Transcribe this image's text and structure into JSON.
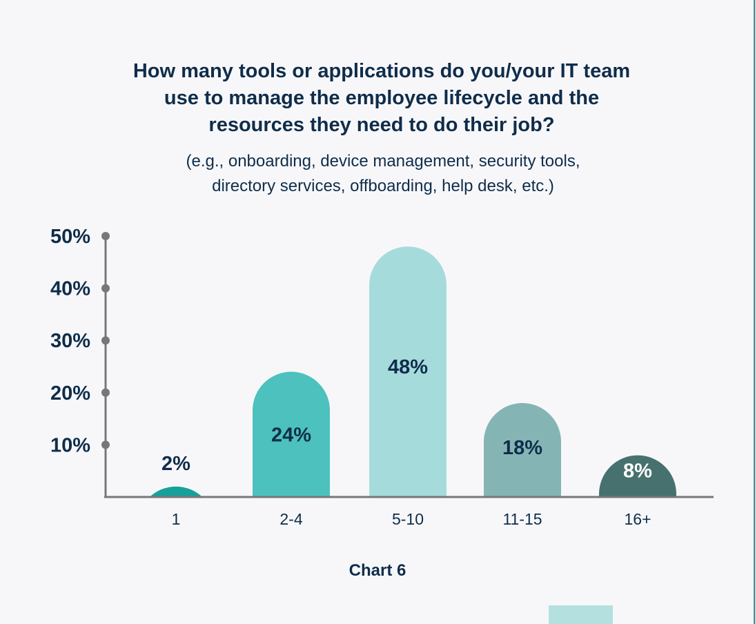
{
  "title_lines": [
    "How many tools or applications do you/your IT team",
    "use to manage the employee lifecycle and the",
    "resources they need to do their job?"
  ],
  "subtitle_lines": [
    "(e.g., onboarding, device management, security tools,",
    "directory services, offboarding, help desk, etc.)"
  ],
  "caption": "Chart 6",
  "chart_data": {
    "type": "bar",
    "title": "How many tools or applications do you/your IT team use to manage the employee lifecycle and the resources they need to do their job?",
    "subtitle": "(e.g., onboarding, device management, security tools, directory services, offboarding, help desk, etc.)",
    "categories": [
      "1",
      "2-4",
      "5-10",
      "11-15",
      "16+"
    ],
    "values": [
      2,
      24,
      48,
      18,
      8
    ],
    "data_labels": [
      "2%",
      "24%",
      "48%",
      "18%",
      "8%"
    ],
    "colors": [
      "#17a09a",
      "#4cc1be",
      "#a6dbdc",
      "#84b5b4",
      "#46716f"
    ],
    "label_colors": [
      "#0f2d4a",
      "#0f2d4a",
      "#0f2d4a",
      "#0f2d4a",
      "#ffffff"
    ],
    "yticks": [
      10,
      20,
      30,
      40,
      50
    ],
    "ytick_labels": [
      "10%",
      "20%",
      "30%",
      "40%",
      "50%"
    ],
    "ylim": [
      0,
      50
    ],
    "xlabel": "",
    "ylabel": "",
    "grid": false,
    "bar_shape": "rounded-top"
  }
}
